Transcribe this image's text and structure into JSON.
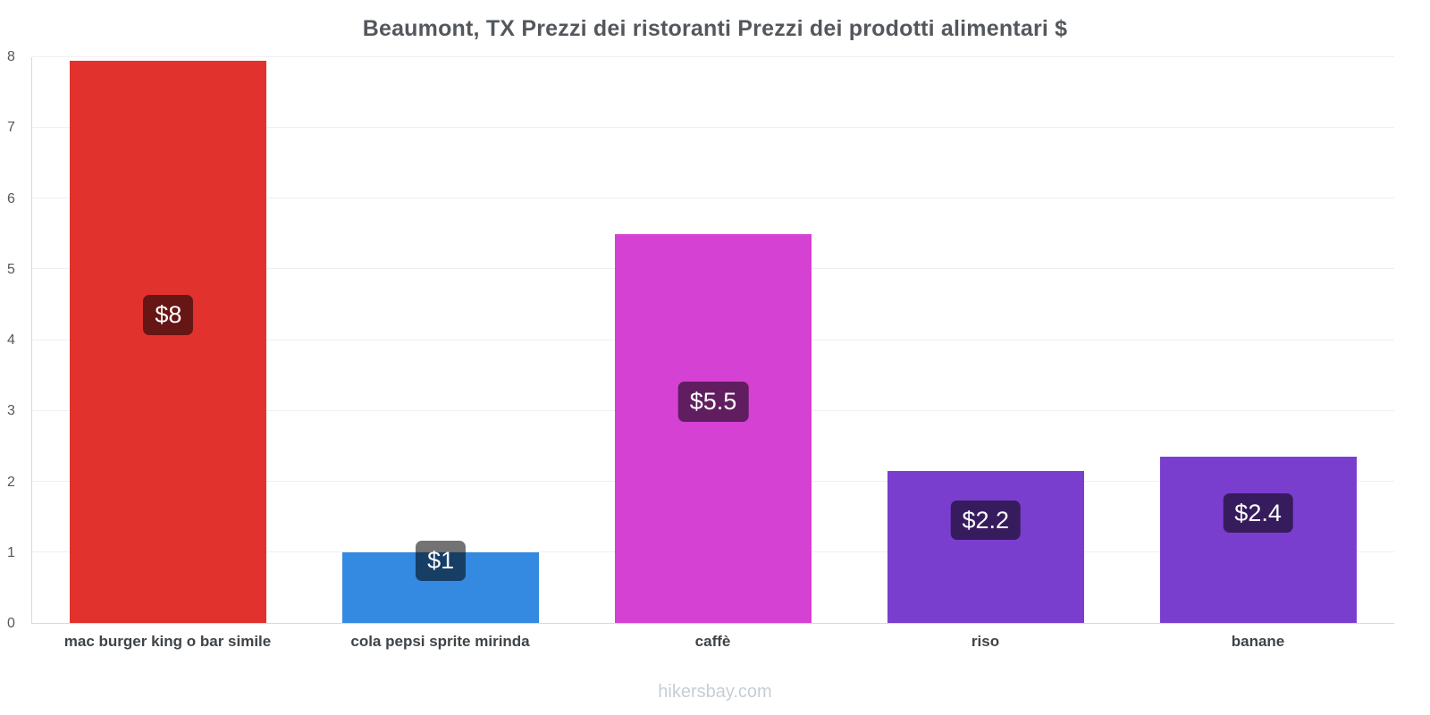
{
  "chart_data": {
    "type": "bar",
    "title": "Beaumont, TX Prezzi dei ristoranti Prezzi dei prodotti alimentari $",
    "categories": [
      "mac burger king o bar simile",
      "cola pepsi sprite mirinda",
      "caffè",
      "riso",
      "banane"
    ],
    "values": [
      7.95,
      1,
      5.5,
      2.15,
      2.35
    ],
    "value_labels": [
      "$8",
      "$1",
      "$5.5",
      "$2.2",
      "$2.4"
    ],
    "bar_colors": [
      "#e2322d",
      "#3489e0",
      "#d541d3",
      "#7a3ecf",
      "#7a3ecf"
    ],
    "label_bg": "rgba(0,0,0,0.55)",
    "xlabel": "",
    "ylabel": "",
    "ylim": [
      0,
      8
    ],
    "yticks": [
      0,
      1,
      2,
      3,
      4,
      5,
      6,
      7,
      8
    ],
    "grid": true,
    "legend": false,
    "axis_color": "#d6dadd",
    "grid_color": "#edf0f2",
    "title_color": "#54585d",
    "watermark": "hikersbay.com"
  }
}
